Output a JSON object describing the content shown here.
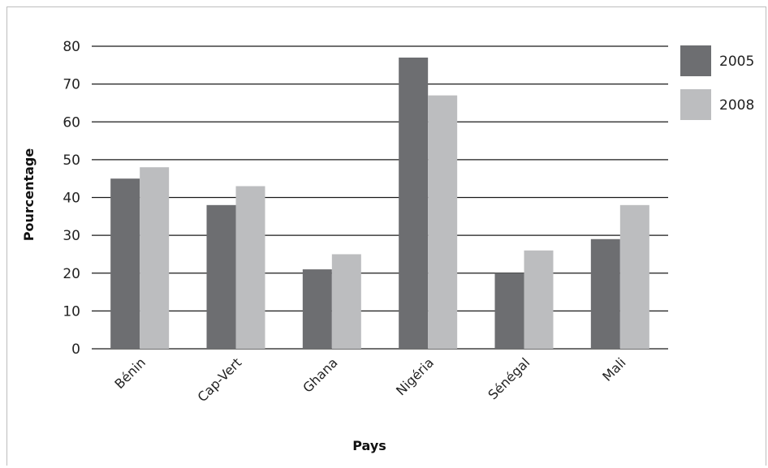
{
  "chart_data": {
    "type": "bar",
    "categories": [
      "Bénin",
      "Cap-Vert",
      "Ghana",
      "Nigéria",
      "Sénégal",
      "Mali"
    ],
    "series": [
      {
        "name": "2005",
        "color": "#6d6e71",
        "values": [
          45,
          38,
          21,
          77,
          20,
          29
        ]
      },
      {
        "name": "2008",
        "color": "#bcbdbf",
        "values": [
          48,
          43,
          25,
          67,
          26,
          38
        ]
      }
    ],
    "xlabel": "Pays",
    "ylabel": "Pourcentage",
    "ylim": [
      0,
      80
    ],
    "yticks": [
      "0",
      "10",
      "20",
      "30",
      "40",
      "50",
      "60",
      "70",
      "80"
    ],
    "grid": true,
    "legend_position": "right"
  }
}
